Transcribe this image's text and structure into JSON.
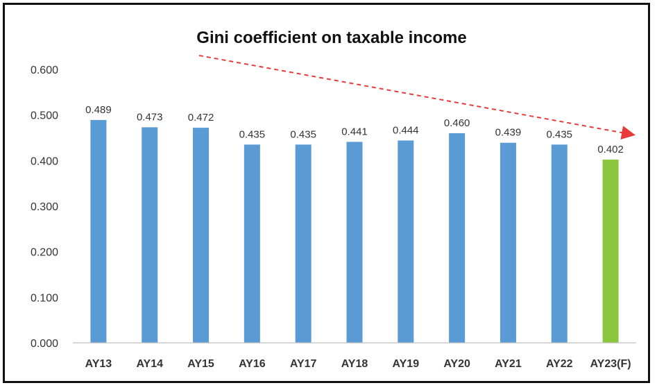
{
  "chart_data": {
    "type": "bar",
    "title": "Gini coefficient on taxable income",
    "categories": [
      "AY13",
      "AY14",
      "AY15",
      "AY16",
      "AY17",
      "AY18",
      "AY19",
      "AY20",
      "AY21",
      "AY22",
      "AY23(F)"
    ],
    "values": [
      0.489,
      0.473,
      0.472,
      0.435,
      0.435,
      0.441,
      0.444,
      0.46,
      0.439,
      0.435,
      0.402
    ],
    "data_labels": [
      "0.489",
      "0.473",
      "0.472",
      "0.435",
      "0.435",
      "0.441",
      "0.444",
      "0.460",
      "0.439",
      "0.435",
      "0.402"
    ],
    "yticks": [
      "0.000",
      "0.100",
      "0.200",
      "0.300",
      "0.400",
      "0.500",
      "0.600"
    ],
    "ylim": [
      0,
      0.6
    ],
    "grid": false,
    "legend": "none",
    "colors": {
      "bar": "#5b9bd5",
      "highlight_bar": "#8cc63f",
      "trend_arrow": "#e83a3a"
    },
    "highlight_category": "AY23(F)",
    "trend_arrow": {
      "style": "dashed",
      "direction": "downward",
      "color": "#e83a3a"
    }
  }
}
